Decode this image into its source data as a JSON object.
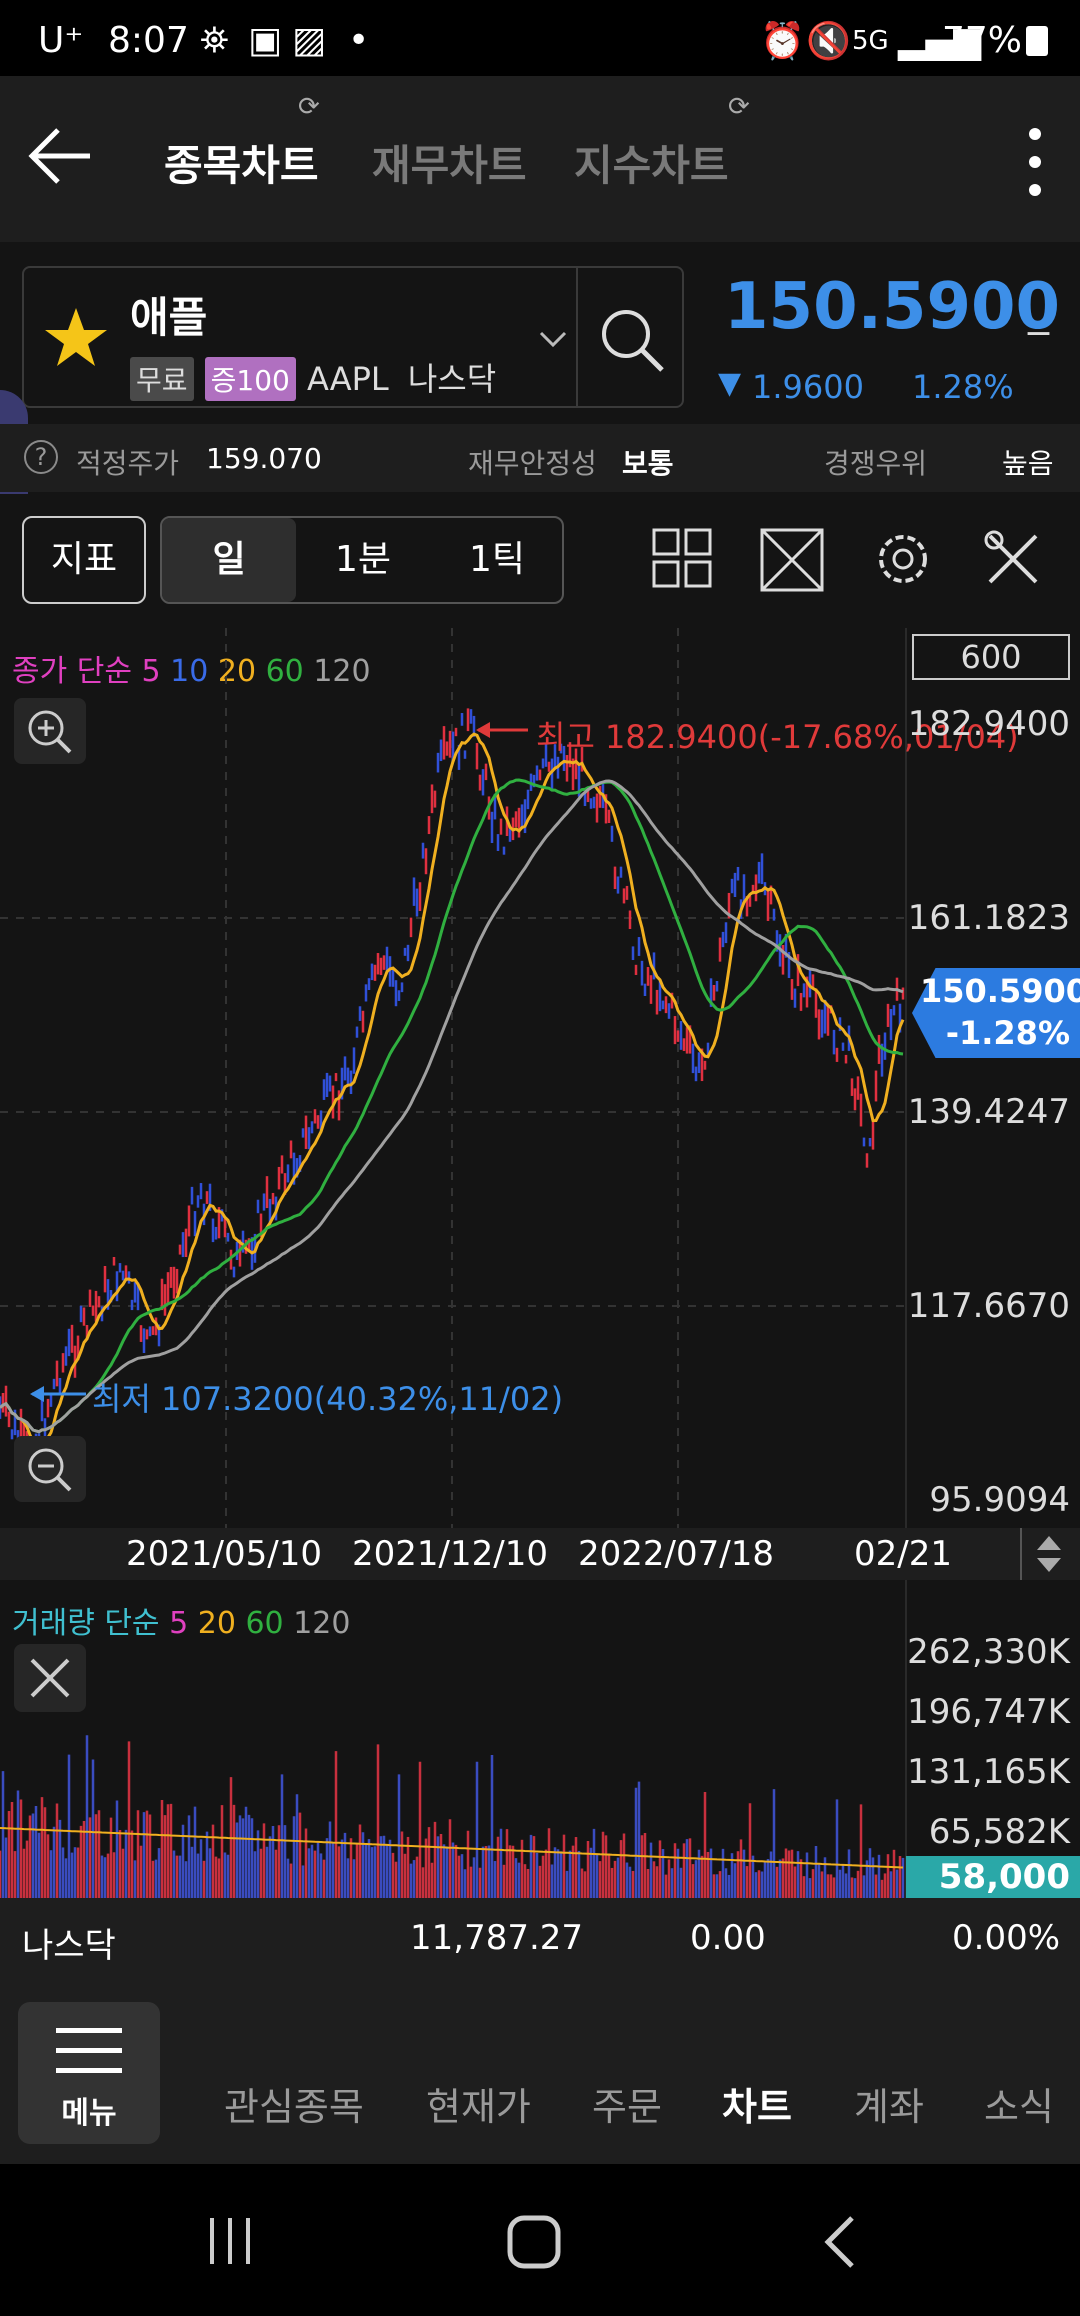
{
  "status_bar": {
    "carrier": "U⁺",
    "time": "8:07",
    "battery": "77%"
  },
  "nav": {
    "tabs": [
      {
        "label": "종목차트",
        "active": true
      },
      {
        "label": "재무차트",
        "active": false
      },
      {
        "label": "지수차트",
        "active": false
      }
    ]
  },
  "stock": {
    "name": "애플",
    "badge_free": "무료",
    "badge_margin": "증100",
    "ticker": "AAPL",
    "market": "나스닥",
    "price": "150.5900",
    "change": "1.9600",
    "change_pct": "1.28%"
  },
  "info": {
    "fair_price_label": "적정주가",
    "fair_price_value": "159.070",
    "stability_label": "재무안정성",
    "stability_value": "보통",
    "competitive_label": "경쟁우위",
    "competitive_value": "높음"
  },
  "toolbar": {
    "indicator": "지표",
    "period_day": "일",
    "period_min": "1분",
    "period_tick": "1틱"
  },
  "chart": {
    "legend_prefix": "종가 단순",
    "ma": [
      "5",
      "10",
      "20",
      "60",
      "120"
    ],
    "count_box": "600",
    "y_labels": [
      "182.9400",
      "161.1823",
      "139.4247",
      "117.6670",
      "95.9094"
    ],
    "current_price": "150.5900",
    "current_change": "-1.28%",
    "high_label": "최고 182.9400(-17.68%,01/04)",
    "low_label": "최저 107.3200(40.32%,11/02)",
    "x_labels": [
      "2021/05/10",
      "2021/12/10",
      "2022/07/18",
      "02/21"
    ],
    "colors": {
      "ma5": "#e040c0",
      "ma10": "#3a6be8",
      "ma20": "#f0b020",
      "ma60": "#30b040",
      "ma120": "#a0a0a0"
    }
  },
  "volume": {
    "legend_prefix": "거래량 단순",
    "ma": [
      "5",
      "20",
      "60",
      "120"
    ],
    "y_labels": [
      "262,330K",
      "196,747K",
      "131,165K",
      "65,582K"
    ],
    "current": "58,000"
  },
  "index_bar": {
    "name": "나스닥",
    "value": "11,787.27",
    "change": "0.00",
    "pct": "0.00%"
  },
  "bottom_nav": {
    "menu": "메뉴",
    "items": [
      "관심종목",
      "현재가",
      "주문",
      "차트",
      "계좌",
      "소식"
    ],
    "active": "차트"
  }
}
